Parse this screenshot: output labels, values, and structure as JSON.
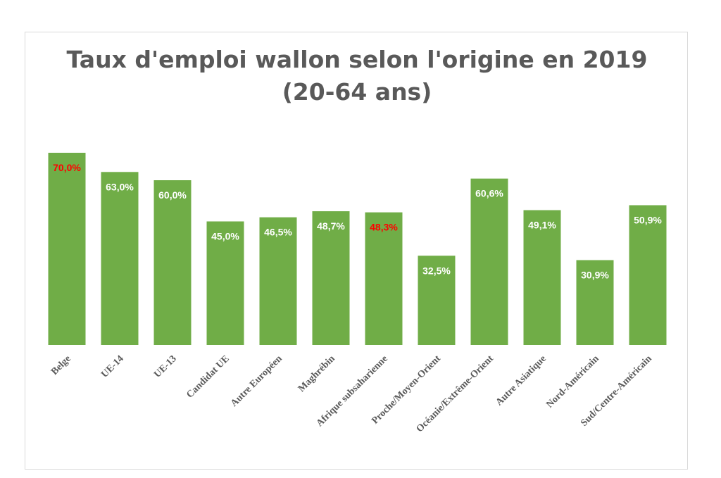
{
  "chart_data": {
    "type": "bar",
    "title_line1": "Taux d'emploi wallon selon l'origine en 2019",
    "title_line2": "(20-64 ans)",
    "categories": [
      "Belge",
      "UE-14",
      "UE-13",
      "Candidat UE",
      "Autre Européen",
      "Maghrébin",
      "Afrique subsaharienne",
      "Proche/Moyen-Orient",
      "Océanie/Extrême-Orient",
      "Autre Asiatique",
      "Nord-Américain",
      "Sud/Centre-Américain"
    ],
    "values": [
      70.0,
      63.0,
      60.0,
      45.0,
      46.5,
      48.7,
      48.3,
      32.5,
      60.6,
      49.1,
      30.9,
      50.9
    ],
    "data_labels": [
      "70,0%",
      "63,0%",
      "60,0%",
      "45,0%",
      "46,5%",
      "48,7%",
      "48,3%",
      "32,5%",
      "60,6%",
      "49,1%",
      "30,9%",
      "50,9%"
    ],
    "highlighted_labels": [
      0,
      6
    ],
    "xlabel": "",
    "ylabel": "",
    "ylim": [
      0,
      70
    ],
    "grid": false,
    "legend": "none",
    "colors": {
      "bar": "#70ad47",
      "label": "#ffffff",
      "highlight_label": "#ff0000",
      "axis_text": "#595959"
    }
  }
}
